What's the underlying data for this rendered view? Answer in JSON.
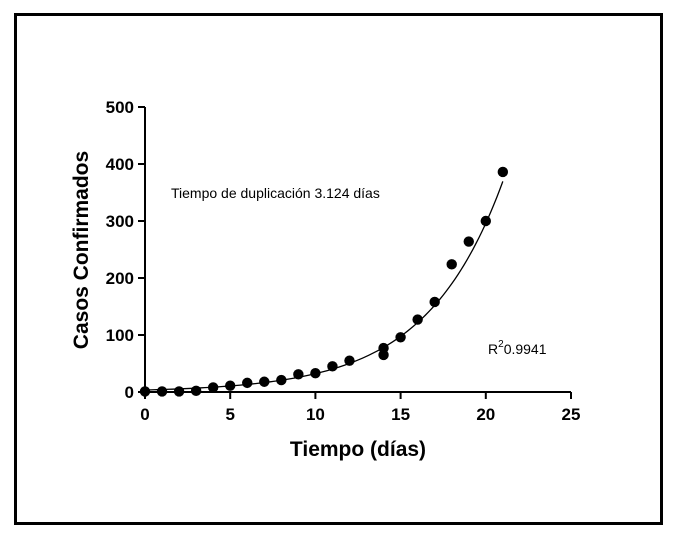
{
  "chart_data": {
    "type": "scatter",
    "title": "",
    "xlabel": "Tiempo (días)",
    "ylabel": "Casos Confirmados",
    "xlim": [
      0,
      25
    ],
    "ylim": [
      0,
      500
    ],
    "xticks": [
      0,
      5,
      10,
      15,
      20,
      25
    ],
    "yticks": [
      0,
      100,
      200,
      300,
      400,
      500
    ],
    "grid": false,
    "series": [
      {
        "points": [
          {
            "x": 0,
            "y": 1
          },
          {
            "x": 1,
            "y": 1
          },
          {
            "x": 2,
            "y": 1
          },
          {
            "x": 3,
            "y": 2
          },
          {
            "x": 4,
            "y": 8
          },
          {
            "x": 5,
            "y": 11
          },
          {
            "x": 6,
            "y": 16
          },
          {
            "x": 7,
            "y": 18
          },
          {
            "x": 8,
            "y": 21
          },
          {
            "x": 9,
            "y": 31
          },
          {
            "x": 10,
            "y": 33
          },
          {
            "x": 11,
            "y": 45
          },
          {
            "x": 12,
            "y": 55
          },
          {
            "x": 14,
            "y": 77
          },
          {
            "x": 14,
            "y": 65
          },
          {
            "x": 15,
            "y": 96
          },
          {
            "x": 16,
            "y": 127
          },
          {
            "x": 17,
            "y": 158
          },
          {
            "x": 18,
            "y": 224
          },
          {
            "x": 19,
            "y": 264
          },
          {
            "x": 20,
            "y": 300
          },
          {
            "x": 21,
            "y": 386
          }
        ],
        "marker_color": "#000000"
      }
    ],
    "fit": {
      "type": "exponential",
      "doubling_time": 3.124,
      "y_at_0": 3.5,
      "x_range": [
        0,
        21
      ],
      "color": "#000000"
    },
    "annotations": {
      "doubling_text": "Tiempo de duplicación 3.124 días",
      "r2_base": "R",
      "r2_sup": "2",
      "r2_value": "0.9941"
    }
  }
}
